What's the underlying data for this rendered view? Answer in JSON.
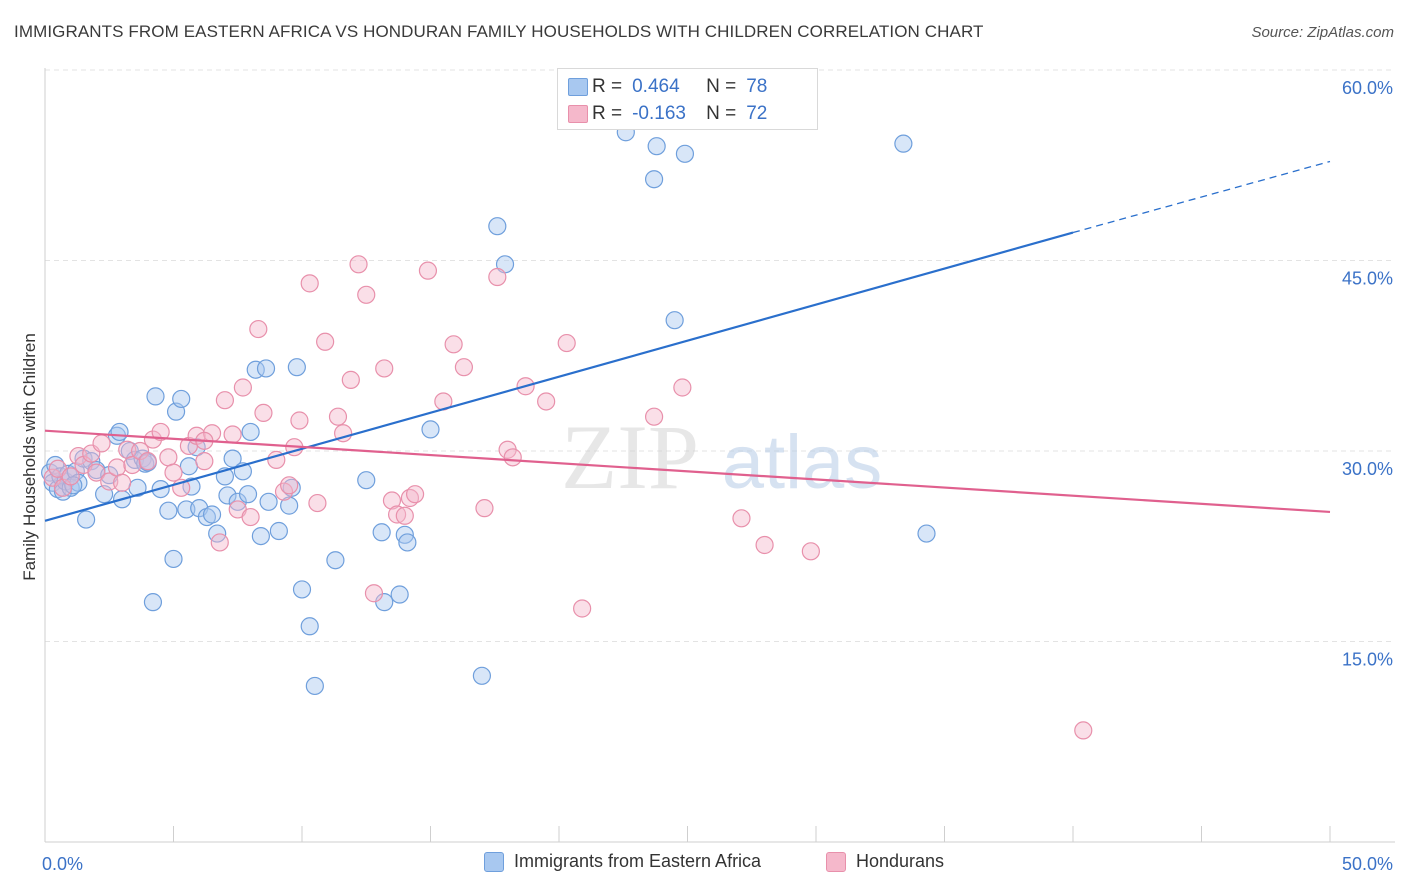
{
  "title": "IMMIGRANTS FROM EASTERN AFRICA VS HONDURAN FAMILY HOUSEHOLDS WITH CHILDREN CORRELATION CHART",
  "source": "Source: ZipAtlas.com",
  "watermark": {
    "zip": "ZIP",
    "atlas": "atlas"
  },
  "legend_top": [
    {
      "r_label": "R =",
      "r_value": "0.464",
      "n_label": "N =",
      "n_value": "78"
    },
    {
      "r_label": "R =",
      "r_value": "-0.163",
      "n_label": "N =",
      "n_value": "72"
    }
  ],
  "colors": {
    "blue_fill": "#a8c8f0",
    "blue_stroke": "#6f9fdc",
    "blue_line": "#2a6fcc",
    "pink_fill": "#f5b8cb",
    "pink_stroke": "#e890ab",
    "pink_line": "#e0608e",
    "grid": "#e3e3e3",
    "axis_text": "#3b72c7"
  },
  "chart_data": {
    "type": "scatter",
    "ylabel": "Family Households with Children",
    "xlim": [
      0,
      50
    ],
    "ylim": [
      0,
      60
    ],
    "x_tick_labels": [
      "0.0%",
      "50.0%"
    ],
    "y_ticks": [
      15,
      30,
      45,
      60
    ],
    "y_tick_labels": [
      "15.0%",
      "30.0%",
      "45.0%",
      "60.0%"
    ],
    "grid": true,
    "legend_position": "bottom-center",
    "series": [
      {
        "name": "Immigrants from Eastern Africa",
        "color": "#a8c8f0",
        "trend": {
          "x": [
            0,
            40
          ],
          "y": [
            24.5,
            47.2
          ],
          "dashed_to": [
            50,
            52.8
          ]
        },
        "points": [
          [
            0.2,
            28.3
          ],
          [
            0.3,
            27.5
          ],
          [
            0.4,
            28.9
          ],
          [
            0.5,
            27.0
          ],
          [
            0.6,
            28.0
          ],
          [
            0.7,
            26.8
          ],
          [
            0.8,
            27.6
          ],
          [
            0.9,
            28.2
          ],
          [
            1.0,
            27.1
          ],
          [
            1.2,
            28.4
          ],
          [
            1.3,
            27.5
          ],
          [
            1.5,
            29.4
          ],
          [
            1.6,
            24.6
          ],
          [
            1.8,
            29.2
          ],
          [
            2.0,
            28.5
          ],
          [
            2.3,
            26.6
          ],
          [
            2.5,
            28.1
          ],
          [
            2.8,
            31.2
          ],
          [
            2.9,
            31.5
          ],
          [
            3.0,
            26.2
          ],
          [
            3.3,
            30.0
          ],
          [
            3.5,
            29.3
          ],
          [
            3.6,
            27.1
          ],
          [
            3.8,
            29.4
          ],
          [
            3.9,
            29.0
          ],
          [
            4.0,
            29.1
          ],
          [
            4.2,
            18.1
          ],
          [
            4.3,
            34.3
          ],
          [
            4.5,
            27.0
          ],
          [
            4.8,
            25.3
          ],
          [
            5.0,
            21.5
          ],
          [
            5.1,
            33.1
          ],
          [
            5.3,
            34.1
          ],
          [
            5.5,
            25.4
          ],
          [
            5.6,
            28.8
          ],
          [
            5.7,
            27.2
          ],
          [
            5.9,
            30.3
          ],
          [
            6.0,
            25.5
          ],
          [
            6.3,
            24.8
          ],
          [
            6.5,
            25.0
          ],
          [
            6.7,
            23.5
          ],
          [
            7.0,
            28.0
          ],
          [
            7.1,
            26.5
          ],
          [
            7.3,
            29.4
          ],
          [
            7.5,
            26.0
          ],
          [
            7.7,
            28.4
          ],
          [
            7.9,
            26.6
          ],
          [
            8.0,
            31.5
          ],
          [
            8.2,
            36.4
          ],
          [
            8.4,
            23.3
          ],
          [
            8.6,
            36.5
          ],
          [
            8.7,
            26.0
          ],
          [
            9.1,
            23.7
          ],
          [
            9.5,
            25.7
          ],
          [
            9.6,
            27.1
          ],
          [
            9.8,
            36.6
          ],
          [
            10.0,
            19.1
          ],
          [
            10.3,
            16.2
          ],
          [
            10.5,
            11.5
          ],
          [
            11.3,
            21.4
          ],
          [
            12.5,
            27.7
          ],
          [
            13.1,
            23.6
          ],
          [
            13.2,
            18.1
          ],
          [
            13.8,
            18.7
          ],
          [
            14.0,
            23.4
          ],
          [
            14.1,
            22.8
          ],
          [
            15.0,
            31.7
          ],
          [
            17.0,
            12.3
          ],
          [
            17.6,
            47.7
          ],
          [
            17.9,
            44.7
          ],
          [
            22.6,
            55.1
          ],
          [
            23.7,
            51.4
          ],
          [
            23.8,
            54.0
          ],
          [
            24.5,
            40.3
          ],
          [
            24.9,
            53.4
          ],
          [
            33.4,
            54.2
          ],
          [
            34.3,
            23.5
          ],
          [
            1.1,
            27.3
          ]
        ]
      },
      {
        "name": "Hondurans",
        "color": "#f5b8cb",
        "trend": {
          "x": [
            0,
            50
          ],
          "y": [
            31.6,
            25.2
          ]
        },
        "points": [
          [
            0.3,
            27.9
          ],
          [
            0.5,
            28.6
          ],
          [
            0.7,
            27.1
          ],
          [
            1.0,
            28.0
          ],
          [
            1.3,
            29.6
          ],
          [
            1.5,
            28.9
          ],
          [
            1.8,
            29.8
          ],
          [
            2.0,
            28.3
          ],
          [
            2.2,
            30.6
          ],
          [
            2.5,
            27.6
          ],
          [
            2.8,
            28.7
          ],
          [
            3.0,
            27.5
          ],
          [
            3.2,
            30.1
          ],
          [
            3.4,
            28.9
          ],
          [
            3.7,
            30.0
          ],
          [
            4.0,
            29.2
          ],
          [
            4.2,
            30.9
          ],
          [
            4.5,
            31.5
          ],
          [
            4.8,
            29.5
          ],
          [
            5.0,
            28.3
          ],
          [
            5.3,
            27.1
          ],
          [
            5.6,
            30.4
          ],
          [
            5.9,
            31.2
          ],
          [
            6.2,
            29.2
          ],
          [
            6.5,
            31.4
          ],
          [
            6.8,
            22.8
          ],
          [
            7.0,
            34.0
          ],
          [
            7.3,
            31.3
          ],
          [
            7.5,
            25.4
          ],
          [
            7.7,
            35.0
          ],
          [
            8.0,
            24.8
          ],
          [
            8.3,
            39.6
          ],
          [
            8.5,
            33.0
          ],
          [
            9.0,
            29.3
          ],
          [
            9.3,
            26.8
          ],
          [
            9.5,
            27.3
          ],
          [
            9.7,
            30.3
          ],
          [
            9.9,
            32.4
          ],
          [
            10.3,
            43.2
          ],
          [
            10.6,
            25.9
          ],
          [
            10.9,
            38.6
          ],
          [
            11.4,
            32.7
          ],
          [
            11.6,
            31.4
          ],
          [
            11.9,
            35.6
          ],
          [
            12.2,
            44.7
          ],
          [
            12.5,
            42.3
          ],
          [
            12.8,
            18.8
          ],
          [
            13.2,
            36.5
          ],
          [
            13.5,
            26.1
          ],
          [
            13.7,
            25.0
          ],
          [
            14.0,
            24.9
          ],
          [
            14.2,
            26.3
          ],
          [
            14.4,
            26.6
          ],
          [
            14.9,
            44.2
          ],
          [
            15.5,
            33.9
          ],
          [
            15.9,
            38.4
          ],
          [
            16.3,
            36.6
          ],
          [
            17.1,
            25.5
          ],
          [
            17.6,
            43.7
          ],
          [
            18.0,
            30.1
          ],
          [
            18.2,
            29.5
          ],
          [
            18.7,
            35.1
          ],
          [
            19.5,
            33.9
          ],
          [
            20.3,
            38.5
          ],
          [
            20.9,
            17.6
          ],
          [
            23.7,
            32.7
          ],
          [
            24.8,
            35.0
          ],
          [
            27.1,
            24.7
          ],
          [
            28.0,
            22.6
          ],
          [
            29.8,
            22.1
          ],
          [
            40.4,
            8.0
          ],
          [
            6.2,
            30.8
          ]
        ]
      }
    ]
  },
  "bottom_legend": [
    {
      "label": "Immigrants from Eastern Africa"
    },
    {
      "label": "Hondurans"
    }
  ]
}
